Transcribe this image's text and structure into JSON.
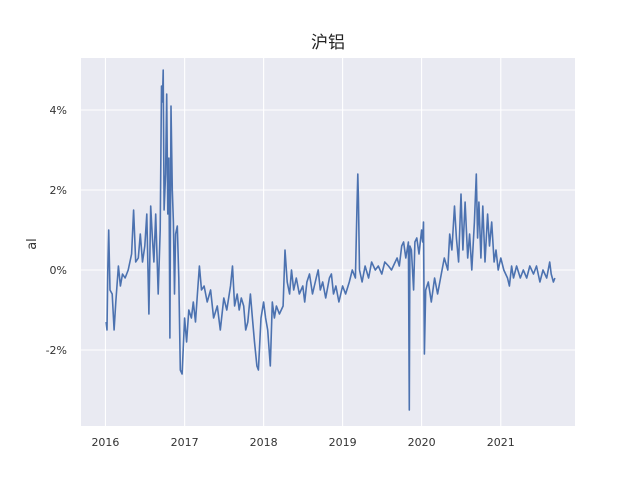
{
  "chart_data": {
    "type": "line",
    "title": "沪铝",
    "ylabel": "al",
    "xlabel": "",
    "xlim": [
      "2015-09-10",
      "2021-12-10"
    ],
    "ylim": [
      -3.9,
      5.3
    ],
    "x_ticks": [
      "2016",
      "2017",
      "2018",
      "2019",
      "2020",
      "2021"
    ],
    "y_ticks": [
      {
        "value": 4,
        "label": "4%"
      },
      {
        "value": 2,
        "label": "2%"
      },
      {
        "value": 0,
        "label": "0%"
      },
      {
        "value": -2,
        "label": "-2%"
      }
    ],
    "grid": true,
    "colors": {
      "background": "#e9eaf2",
      "grid": "#ffffff",
      "line": "#4c72b0"
    },
    "series": [
      {
        "values": [
          [
            "2016-01-04",
            -1.3
          ],
          [
            "2016-01-08",
            -1.5
          ],
          [
            "2016-01-12",
            0.0
          ],
          [
            "2016-01-16",
            1.0
          ],
          [
            "2016-01-22",
            -0.5
          ],
          [
            "2016-02-01",
            -0.6
          ],
          [
            "2016-02-10",
            -1.5
          ],
          [
            "2016-02-18",
            -0.8
          ],
          [
            "2016-03-01",
            0.1
          ],
          [
            "2016-03-10",
            -0.4
          ],
          [
            "2016-03-20",
            -0.1
          ],
          [
            "2016-04-01",
            -0.2
          ],
          [
            "2016-04-15",
            0.0
          ],
          [
            "2016-05-01",
            0.4
          ],
          [
            "2016-05-10",
            1.5
          ],
          [
            "2016-05-20",
            0.2
          ],
          [
            "2016-06-01",
            0.3
          ],
          [
            "2016-06-10",
            0.9
          ],
          [
            "2016-06-20",
            0.2
          ],
          [
            "2016-07-01",
            0.6
          ],
          [
            "2016-07-10",
            1.4
          ],
          [
            "2016-07-20",
            -1.1
          ],
          [
            "2016-07-28",
            1.6
          ],
          [
            "2016-08-05",
            0.8
          ],
          [
            "2016-08-12",
            0.2
          ],
          [
            "2016-08-20",
            1.4
          ],
          [
            "2016-09-01",
            -0.6
          ],
          [
            "2016-09-10",
            1.0
          ],
          [
            "2016-09-16",
            4.6
          ],
          [
            "2016-09-20",
            4.2
          ],
          [
            "2016-09-24",
            5.0
          ],
          [
            "2016-09-28",
            1.5
          ],
          [
            "2016-10-05",
            2.4
          ],
          [
            "2016-10-10",
            4.4
          ],
          [
            "2016-10-15",
            1.4
          ],
          [
            "2016-10-20",
            2.8
          ],
          [
            "2016-10-25",
            -1.7
          ],
          [
            "2016-10-30",
            4.1
          ],
          [
            "2016-11-05",
            2.0
          ],
          [
            "2016-11-10",
            1.2
          ],
          [
            "2016-11-15",
            -0.6
          ],
          [
            "2016-11-20",
            0.9
          ],
          [
            "2016-11-28",
            1.1
          ],
          [
            "2016-12-05",
            -0.2
          ],
          [
            "2016-12-12",
            -2.5
          ],
          [
            "2016-12-20",
            -2.6
          ],
          [
            "2017-01-01",
            -1.2
          ],
          [
            "2017-01-10",
            -1.8
          ],
          [
            "2017-01-20",
            -1.0
          ],
          [
            "2017-02-01",
            -1.2
          ],
          [
            "2017-02-10",
            -0.8
          ],
          [
            "2017-02-20",
            -1.3
          ],
          [
            "2017-03-01",
            -0.6
          ],
          [
            "2017-03-10",
            0.1
          ],
          [
            "2017-03-20",
            -0.5
          ],
          [
            "2017-04-01",
            -0.4
          ],
          [
            "2017-04-15",
            -0.8
          ],
          [
            "2017-05-01",
            -0.5
          ],
          [
            "2017-05-15",
            -1.2
          ],
          [
            "2017-06-01",
            -0.9
          ],
          [
            "2017-06-15",
            -1.5
          ],
          [
            "2017-07-01",
            -0.7
          ],
          [
            "2017-07-15",
            -1.0
          ],
          [
            "2017-08-01",
            -0.4
          ],
          [
            "2017-08-10",
            0.1
          ],
          [
            "2017-08-20",
            -0.9
          ],
          [
            "2017-09-01",
            -0.6
          ],
          [
            "2017-09-10",
            -1.0
          ],
          [
            "2017-09-20",
            -0.7
          ],
          [
            "2017-10-01",
            -0.9
          ],
          [
            "2017-10-10",
            -1.5
          ],
          [
            "2017-10-20",
            -1.3
          ],
          [
            "2017-11-01",
            -0.6
          ],
          [
            "2017-11-10",
            -1.2
          ],
          [
            "2017-11-20",
            -1.8
          ],
          [
            "2017-12-01",
            -2.4
          ],
          [
            "2017-12-08",
            -2.5
          ],
          [
            "2017-12-20",
            -1.2
          ],
          [
            "2018-01-01",
            -0.8
          ],
          [
            "2018-01-10",
            -1.2
          ],
          [
            "2018-01-20",
            -1.5
          ],
          [
            "2018-02-01",
            -2.4
          ],
          [
            "2018-02-10",
            -0.8
          ],
          [
            "2018-02-20",
            -1.2
          ],
          [
            "2018-03-01",
            -0.9
          ],
          [
            "2018-03-15",
            -1.1
          ],
          [
            "2018-04-01",
            -0.9
          ],
          [
            "2018-04-10",
            0.5
          ],
          [
            "2018-04-20",
            -0.3
          ],
          [
            "2018-05-01",
            -0.6
          ],
          [
            "2018-05-10",
            0.0
          ],
          [
            "2018-05-20",
            -0.5
          ],
          [
            "2018-06-01",
            -0.2
          ],
          [
            "2018-06-15",
            -0.6
          ],
          [
            "2018-07-01",
            -0.4
          ],
          [
            "2018-07-10",
            -0.8
          ],
          [
            "2018-07-20",
            -0.3
          ],
          [
            "2018-08-01",
            -0.1
          ],
          [
            "2018-08-15",
            -0.6
          ],
          [
            "2018-09-01",
            -0.2
          ],
          [
            "2018-09-10",
            0.0
          ],
          [
            "2018-09-20",
            -0.5
          ],
          [
            "2018-10-01",
            -0.3
          ],
          [
            "2018-10-15",
            -0.7
          ],
          [
            "2018-11-01",
            -0.2
          ],
          [
            "2018-11-10",
            -0.1
          ],
          [
            "2018-11-20",
            -0.6
          ],
          [
            "2018-12-01",
            -0.4
          ],
          [
            "2018-12-15",
            -0.8
          ],
          [
            "2019-01-01",
            -0.4
          ],
          [
            "2019-01-15",
            -0.6
          ],
          [
            "2019-02-01",
            -0.3
          ],
          [
            "2019-02-15",
            0.0
          ],
          [
            "2019-03-01",
            -0.2
          ],
          [
            "2019-03-08",
            1.5
          ],
          [
            "2019-03-12",
            2.4
          ],
          [
            "2019-03-15",
            1.8
          ],
          [
            "2019-03-20",
            0.0
          ],
          [
            "2019-04-01",
            -0.3
          ],
          [
            "2019-04-15",
            0.1
          ],
          [
            "2019-05-01",
            -0.2
          ],
          [
            "2019-05-15",
            0.2
          ],
          [
            "2019-06-01",
            0.0
          ],
          [
            "2019-06-15",
            0.1
          ],
          [
            "2019-07-01",
            -0.1
          ],
          [
            "2019-07-15",
            0.2
          ],
          [
            "2019-08-01",
            0.1
          ],
          [
            "2019-08-15",
            0.0
          ],
          [
            "2019-09-01",
            0.2
          ],
          [
            "2019-09-10",
            0.3
          ],
          [
            "2019-09-20",
            0.1
          ],
          [
            "2019-10-01",
            0.6
          ],
          [
            "2019-10-10",
            0.7
          ],
          [
            "2019-10-20",
            0.3
          ],
          [
            "2019-11-01",
            0.7
          ],
          [
            "2019-11-05",
            -3.5
          ],
          [
            "2019-11-08",
            0.6
          ],
          [
            "2019-11-15",
            0.5
          ],
          [
            "2019-11-25",
            -0.5
          ],
          [
            "2019-12-01",
            0.7
          ],
          [
            "2019-12-10",
            0.8
          ],
          [
            "2019-12-20",
            0.4
          ],
          [
            "2020-01-01",
            1.0
          ],
          [
            "2020-01-06",
            0.7
          ],
          [
            "2020-01-10",
            1.2
          ],
          [
            "2020-01-14",
            -2.1
          ],
          [
            "2020-01-20",
            -0.5
          ],
          [
            "2020-02-01",
            -0.3
          ],
          [
            "2020-02-15",
            -0.8
          ],
          [
            "2020-03-01",
            -0.2
          ],
          [
            "2020-03-15",
            -0.6
          ],
          [
            "2020-04-01",
            -0.1
          ],
          [
            "2020-04-15",
            0.3
          ],
          [
            "2020-05-01",
            0.0
          ],
          [
            "2020-05-10",
            0.9
          ],
          [
            "2020-05-20",
            0.5
          ],
          [
            "2020-06-01",
            1.6
          ],
          [
            "2020-06-10",
            0.8
          ],
          [
            "2020-06-20",
            0.2
          ],
          [
            "2020-07-01",
            1.9
          ],
          [
            "2020-07-10",
            0.5
          ],
          [
            "2020-07-20",
            1.7
          ],
          [
            "2020-08-01",
            0.3
          ],
          [
            "2020-08-10",
            0.9
          ],
          [
            "2020-08-20",
            0.0
          ],
          [
            "2020-09-01",
            1.2
          ],
          [
            "2020-09-10",
            2.4
          ],
          [
            "2020-09-16",
            0.8
          ],
          [
            "2020-09-22",
            1.7
          ],
          [
            "2020-10-01",
            0.3
          ],
          [
            "2020-10-10",
            1.6
          ],
          [
            "2020-10-20",
            0.2
          ],
          [
            "2020-11-01",
            1.4
          ],
          [
            "2020-11-10",
            0.6
          ],
          [
            "2020-11-20",
            1.2
          ],
          [
            "2020-12-01",
            0.2
          ],
          [
            "2020-12-10",
            0.5
          ],
          [
            "2020-12-20",
            0.0
          ],
          [
            "2021-01-01",
            0.3
          ],
          [
            "2021-01-15",
            0.0
          ],
          [
            "2021-02-01",
            -0.2
          ],
          [
            "2021-02-10",
            -0.4
          ],
          [
            "2021-02-20",
            0.1
          ],
          [
            "2021-03-01",
            -0.2
          ],
          [
            "2021-03-15",
            0.1
          ],
          [
            "2021-04-01",
            -0.2
          ],
          [
            "2021-04-15",
            0.0
          ],
          [
            "2021-05-01",
            -0.2
          ],
          [
            "2021-05-15",
            0.1
          ],
          [
            "2021-06-01",
            -0.1
          ],
          [
            "2021-06-15",
            0.1
          ],
          [
            "2021-07-01",
            -0.3
          ],
          [
            "2021-07-15",
            0.0
          ],
          [
            "2021-08-01",
            -0.2
          ],
          [
            "2021-08-15",
            0.2
          ],
          [
            "2021-08-22",
            -0.1
          ],
          [
            "2021-09-01",
            -0.3
          ],
          [
            "2021-09-08",
            -0.2
          ]
        ]
      }
    ]
  }
}
